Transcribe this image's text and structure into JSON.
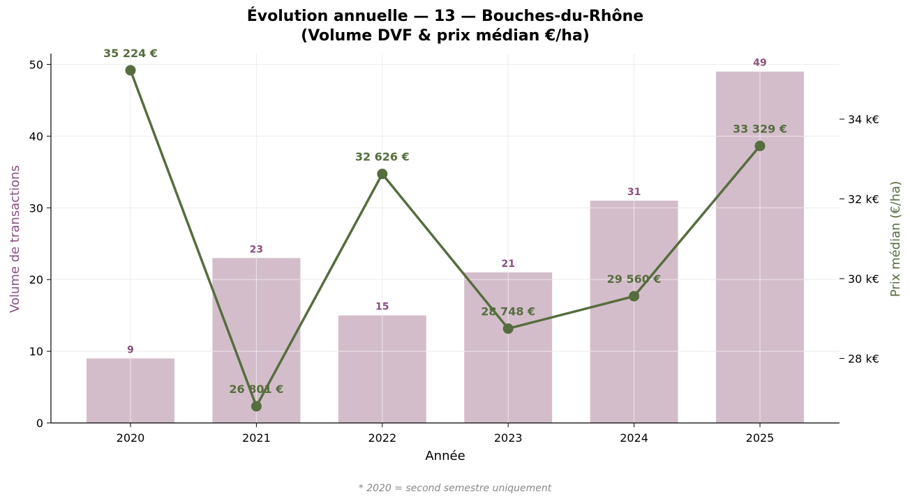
{
  "chart_data": {
    "type": "bar+line",
    "title_line1": "Évolution annuelle — 13 — Bouches-du-Rhône",
    "title_line2": "(Volume DVF & prix médian €/ha)",
    "xlabel": "Année",
    "ylabel_left": "Volume de transactions",
    "ylabel_right": "Prix médian (€/ha)",
    "footnote": "* 2020 = second semestre uniquement",
    "categories": [
      "2020",
      "2021",
      "2022",
      "2023",
      "2024",
      "2025"
    ],
    "bar_series": {
      "values": [
        9,
        23,
        15,
        21,
        31,
        49
      ],
      "labels": [
        "9",
        "23",
        "15",
        "21",
        "31",
        "49"
      ],
      "color": "#d4bdcb",
      "label_color": "#8a4f7d"
    },
    "line_series": {
      "values": [
        35224,
        26801,
        32626,
        28748,
        29560,
        33329
      ],
      "labels": [
        "35 224 €",
        "26 801 €",
        "32 626 €",
        "28 748 €",
        "29 560 €",
        "33 329 €"
      ],
      "color": "#566d3e"
    },
    "left_axis": {
      "ylim": [
        0,
        51.5
      ],
      "ticks": [
        0,
        10,
        20,
        30,
        40,
        50
      ],
      "tick_labels": [
        "0",
        "10",
        "20",
        "30",
        "40",
        "50"
      ],
      "label_color": "#8a4f7d"
    },
    "right_axis": {
      "ylim": [
        26382,
        35642
      ],
      "ticks": [
        28000,
        30000,
        32000,
        34000
      ],
      "tick_labels": [
        "28 k€",
        "30 k€",
        "32 k€",
        "34 k€"
      ],
      "label_color": "#566d3e"
    },
    "grid": true
  }
}
